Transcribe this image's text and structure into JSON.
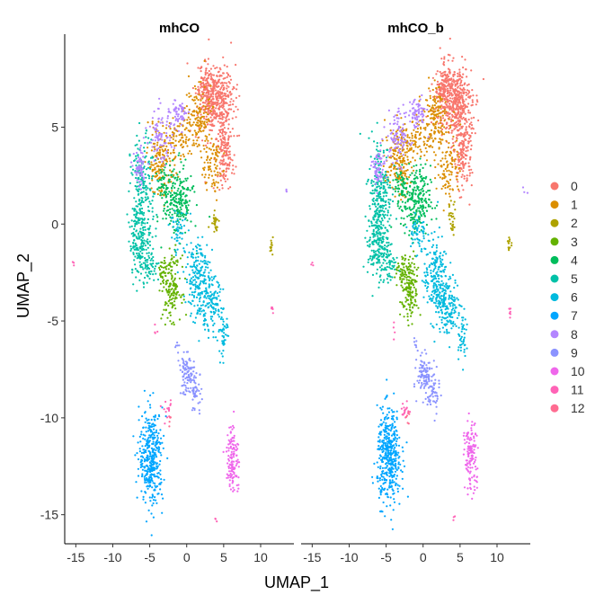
{
  "chart_data": {
    "type": "scatter",
    "xlabel": "UMAP_1",
    "ylabel": "UMAP_2",
    "xlim": [
      -16.5,
      14.5
    ],
    "ylim": [
      -16.5,
      9.8
    ],
    "xticks": [
      "-15",
      "-10",
      "-5",
      "0",
      "5",
      "10"
    ],
    "xtick_values": [
      -15,
      -10,
      -5,
      0,
      5,
      10
    ],
    "yticks": [
      "5",
      "0",
      "-5",
      "-10",
      "-15"
    ],
    "ytick_values": [
      5,
      0,
      -5,
      -10,
      -15
    ],
    "panels": [
      {
        "title": "mhCO"
      },
      {
        "title": "mhCO_b"
      }
    ],
    "legend_position": "right",
    "clusters": [
      {
        "label": "0",
        "color": "#F8766D"
      },
      {
        "label": "1",
        "color": "#DB8E00"
      },
      {
        "label": "2",
        "color": "#AEA200"
      },
      {
        "label": "3",
        "color": "#64B200"
      },
      {
        "label": "4",
        "color": "#00BD5C"
      },
      {
        "label": "5",
        "color": "#00C1A7"
      },
      {
        "label": "6",
        "color": "#00BADE"
      },
      {
        "label": "7",
        "color": "#00A6FF"
      },
      {
        "label": "8",
        "color": "#B385FF"
      },
      {
        "label": "9",
        "color": "#8B93FF"
      },
      {
        "label": "10",
        "color": "#EF67EB"
      },
      {
        "label": "11",
        "color": "#FF63B6"
      },
      {
        "label": "12",
        "color": "#FF6C91"
      }
    ],
    "cluster_regions_approx": [
      {
        "cluster": "0",
        "x": [
          1.5,
          7.0
        ],
        "y": [
          1.5,
          8.0
        ]
      },
      {
        "cluster": "1",
        "x": [
          -5.0,
          5.5
        ],
        "y": [
          1.0,
          7.5
        ]
      },
      {
        "cluster": "2",
        "x": [
          3.0,
          4.5
        ],
        "y": [
          -0.5,
          1.5
        ]
      },
      {
        "cluster": "3",
        "x": [
          -3.5,
          -0.5
        ],
        "y": [
          -5.0,
          -2.0
        ]
      },
      {
        "cluster": "4",
        "x": [
          -4.0,
          1.0
        ],
        "y": [
          -1.0,
          2.0
        ]
      },
      {
        "cluster": "5",
        "x": [
          -7.5,
          -4.0
        ],
        "y": [
          -2.5,
          4.5
        ]
      },
      {
        "cluster": "6",
        "x": [
          -2.0,
          6.0
        ],
        "y": [
          -6.5,
          0.0
        ]
      },
      {
        "cluster": "7",
        "x": [
          -7.0,
          -3.0
        ],
        "y": [
          -14.0,
          -10.0
        ]
      },
      {
        "cluster": "8",
        "x": [
          -3.0,
          1.5
        ],
        "y": [
          -4.5,
          6.5
        ]
      },
      {
        "cluster": "9",
        "x": [
          -1.0,
          1.5
        ],
        "y": [
          -9.5,
          -6.5
        ]
      },
      {
        "cluster": "10",
        "x": [
          4.5,
          7.0
        ],
        "y": [
          -13.5,
          -11.0
        ]
      },
      {
        "cluster": "11",
        "x": [
          -3.5,
          -2.5
        ],
        "y": [
          -10.0,
          -9.5
        ]
      },
      {
        "cluster": "12",
        "x": [
          -4.0,
          -3.5
        ],
        "y": [
          -5.5,
          -5.0
        ]
      }
    ]
  }
}
